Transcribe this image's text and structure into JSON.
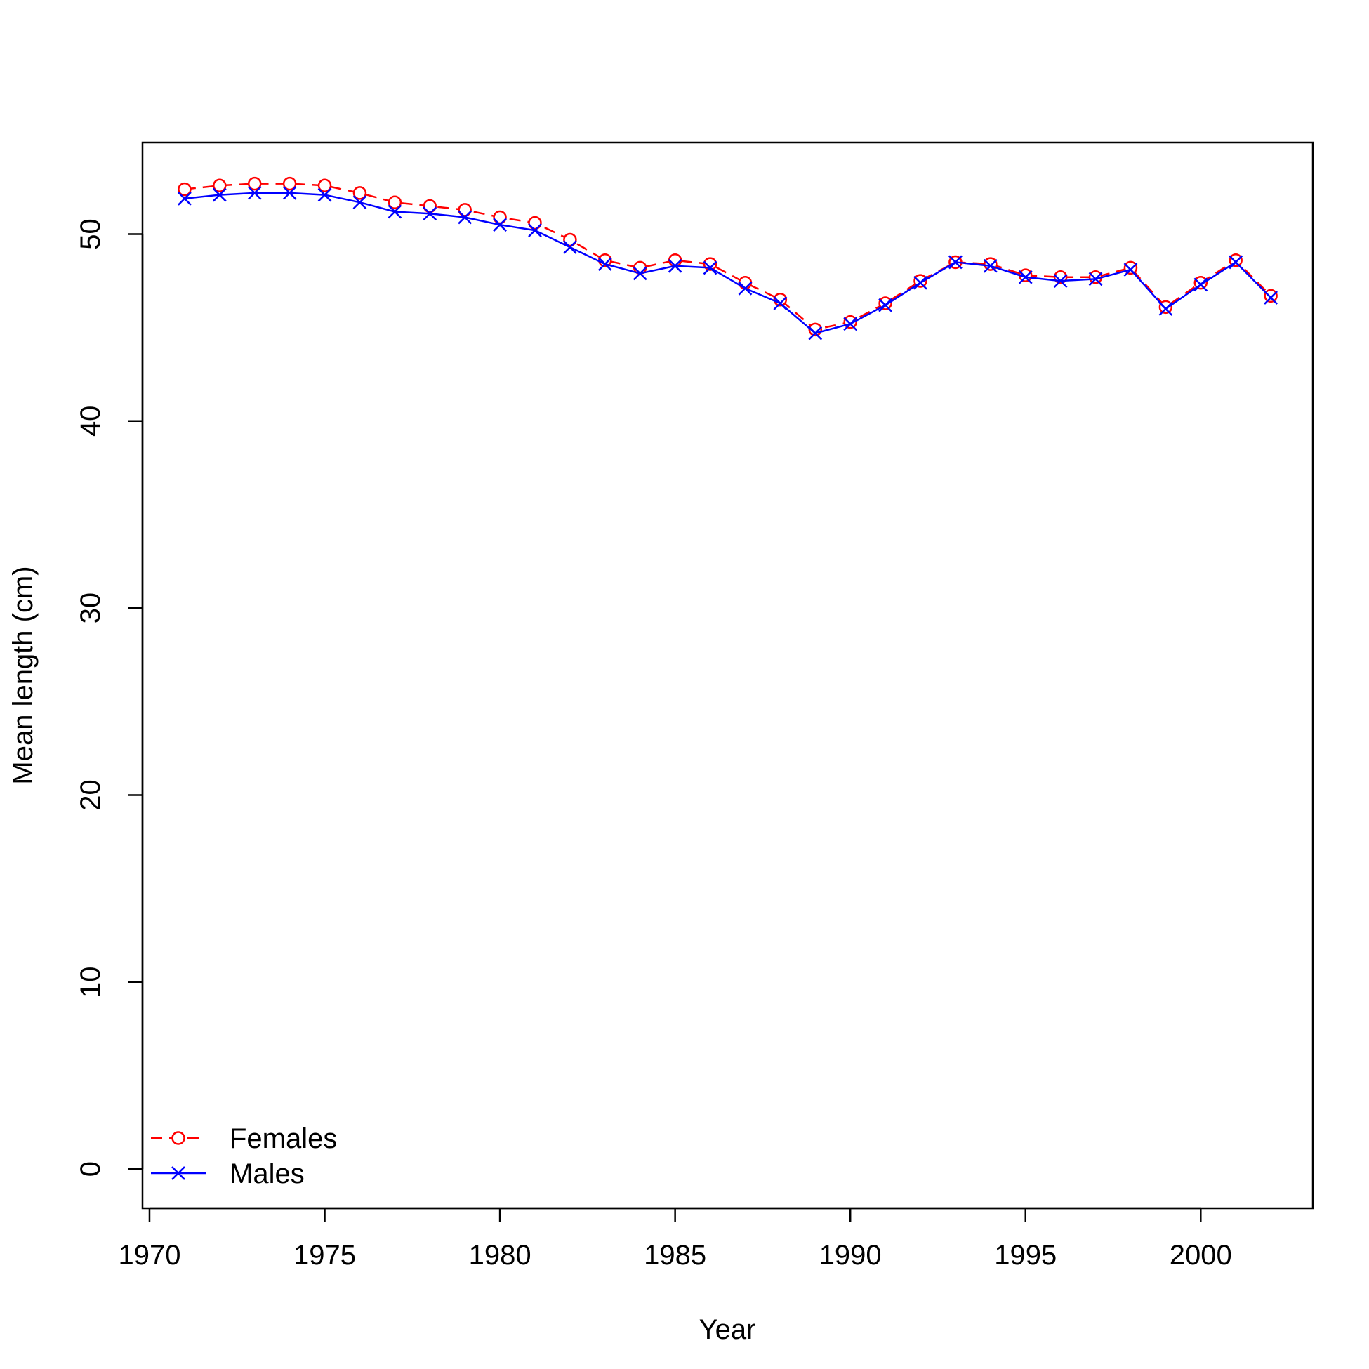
{
  "chart_data": {
    "type": "line",
    "title": "",
    "xlabel": "Year",
    "ylabel": "Mean length (cm)",
    "xlim": [
      1969.8,
      2003.2
    ],
    "ylim": [
      -2.1,
      54.9
    ],
    "x_ticks": [
      1970,
      1975,
      1980,
      1985,
      1990,
      1995,
      2000
    ],
    "y_ticks": [
      0,
      10,
      20,
      30,
      40,
      50
    ],
    "grid": false,
    "legend_position": "bottom-left",
    "x": [
      1971,
      1972,
      1973,
      1974,
      1975,
      1976,
      1977,
      1978,
      1979,
      1980,
      1981,
      1982,
      1983,
      1984,
      1985,
      1986,
      1987,
      1988,
      1989,
      1990,
      1991,
      1992,
      1993,
      1994,
      1995,
      1996,
      1997,
      1998,
      1999,
      2000,
      2001,
      2002
    ],
    "series": [
      {
        "name": "Females",
        "color": "#ff0000",
        "line_style": "dashed",
        "marker": "circle",
        "values": [
          52.4,
          52.6,
          52.7,
          52.7,
          52.6,
          52.2,
          51.7,
          51.5,
          51.3,
          50.9,
          50.6,
          49.7,
          48.6,
          48.2,
          48.6,
          48.4,
          47.4,
          46.5,
          44.9,
          45.3,
          46.3,
          47.5,
          48.5,
          48.4,
          47.8,
          47.7,
          47.7,
          48.2,
          46.1,
          47.4,
          48.6,
          46.7
        ]
      },
      {
        "name": "Males",
        "color": "#0000ff",
        "line_style": "solid",
        "marker": "x",
        "values": [
          51.9,
          52.1,
          52.2,
          52.2,
          52.1,
          51.7,
          51.2,
          51.1,
          50.9,
          50.5,
          50.2,
          49.3,
          48.4,
          47.9,
          48.3,
          48.2,
          47.1,
          46.3,
          44.7,
          45.2,
          46.2,
          47.4,
          48.5,
          48.3,
          47.7,
          47.5,
          47.6,
          48.1,
          46.0,
          47.3,
          48.5,
          46.6
        ]
      }
    ]
  }
}
